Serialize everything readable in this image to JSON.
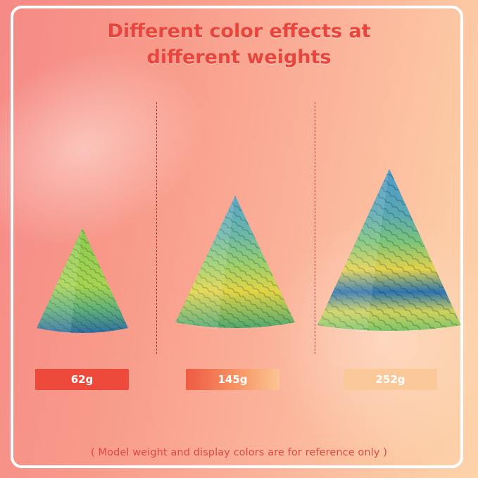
{
  "headline": {
    "line1": "Different color effects at",
    "line2": "different weights"
  },
  "items": [
    {
      "weight": "62g",
      "colors": [
        "#8ac850",
        "#a6d450",
        "#5fae7a",
        "#2f6ea0"
      ]
    },
    {
      "weight": "145g",
      "colors": [
        "#5aa4c4",
        "#9ccf6a",
        "#e4d444",
        "#4fa870"
      ]
    },
    {
      "weight": "252g",
      "colors": [
        "#4f9ac8",
        "#7cc478",
        "#e4d24a",
        "#2e74b0"
      ]
    }
  ],
  "footnote": "( Model weight and display colors are for reference only )",
  "colors": {
    "accent": "#e8453c",
    "frame": "#ffffff"
  }
}
